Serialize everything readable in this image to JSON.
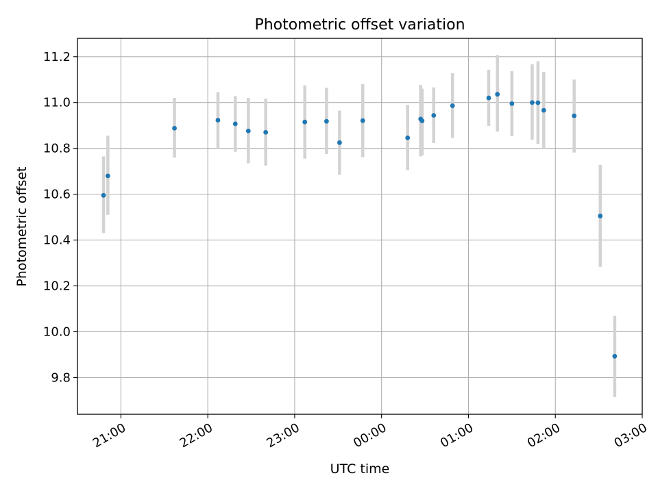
{
  "chart_data": {
    "type": "scatter",
    "title": "Photometric offset variation",
    "xlabel": "UTC time",
    "ylabel": "Photometric offset",
    "x_axis": {
      "unit": "UTC time",
      "range": [
        "20:30",
        "03:00"
      ],
      "ticks": [
        "21:00",
        "22:00",
        "23:00",
        "00:00",
        "01:00",
        "02:00",
        "03:00"
      ]
    },
    "ylim": [
      9.64,
      11.28
    ],
    "y_ticks": [
      9.8,
      10.0,
      10.2,
      10.4,
      10.6,
      10.8,
      11.0,
      11.2
    ],
    "grid": true,
    "colors": {
      "point": "#1f77b4",
      "errorbar": "#d3d3d3",
      "grid": "#b0b0b0"
    },
    "series": [
      {
        "points": [
          {
            "x": "20:48",
            "y": 10.595,
            "err_low": 10.43,
            "err_high": 10.765
          },
          {
            "x": "20:51",
            "y": 10.68,
            "err_low": 10.51,
            "err_high": 10.855
          },
          {
            "x": "21:37",
            "y": 10.888,
            "err_low": 10.76,
            "err_high": 11.02
          },
          {
            "x": "22:07",
            "y": 10.923,
            "err_low": 10.8,
            "err_high": 11.045
          },
          {
            "x": "22:19",
            "y": 10.907,
            "err_low": 10.785,
            "err_high": 11.028
          },
          {
            "x": "22:28",
            "y": 10.876,
            "err_low": 10.735,
            "err_high": 11.02
          },
          {
            "x": "22:40",
            "y": 10.87,
            "err_low": 10.725,
            "err_high": 11.017
          },
          {
            "x": "23:07",
            "y": 10.915,
            "err_low": 10.755,
            "err_high": 11.075
          },
          {
            "x": "23:22",
            "y": 10.918,
            "err_low": 10.775,
            "err_high": 11.065
          },
          {
            "x": "23:31",
            "y": 10.825,
            "err_low": 10.685,
            "err_high": 10.965
          },
          {
            "x": "23:47",
            "y": 10.921,
            "err_low": 10.762,
            "err_high": 11.08
          },
          {
            "x": "00:18",
            "y": 10.846,
            "err_low": 10.705,
            "err_high": 10.99
          },
          {
            "x": "00:27",
            "y": 10.928,
            "err_low": 10.765,
            "err_high": 11.077
          },
          {
            "x": "00:28",
            "y": 10.92,
            "err_low": 10.77,
            "err_high": 11.06
          },
          {
            "x": "00:36",
            "y": 10.944,
            "err_low": 10.823,
            "err_high": 11.066
          },
          {
            "x": "00:49",
            "y": 10.986,
            "err_low": 10.845,
            "err_high": 11.128
          },
          {
            "x": "01:14",
            "y": 11.02,
            "err_low": 10.898,
            "err_high": 11.143
          },
          {
            "x": "01:20",
            "y": 11.036,
            "err_low": 10.873,
            "err_high": 11.207
          },
          {
            "x": "01:30",
            "y": 10.995,
            "err_low": 10.853,
            "err_high": 11.137
          },
          {
            "x": "01:44",
            "y": 11.0,
            "err_low": 10.838,
            "err_high": 11.167
          },
          {
            "x": "01:48",
            "y": 10.999,
            "err_low": 10.82,
            "err_high": 11.18
          },
          {
            "x": "01:52",
            "y": 10.966,
            "err_low": 10.8,
            "err_high": 11.134
          },
          {
            "x": "02:13",
            "y": 10.942,
            "err_low": 10.782,
            "err_high": 11.1
          },
          {
            "x": "02:31",
            "y": 10.505,
            "err_low": 10.283,
            "err_high": 10.728
          },
          {
            "x": "02:41",
            "y": 9.893,
            "err_low": 9.715,
            "err_high": 10.07
          }
        ]
      }
    ]
  }
}
